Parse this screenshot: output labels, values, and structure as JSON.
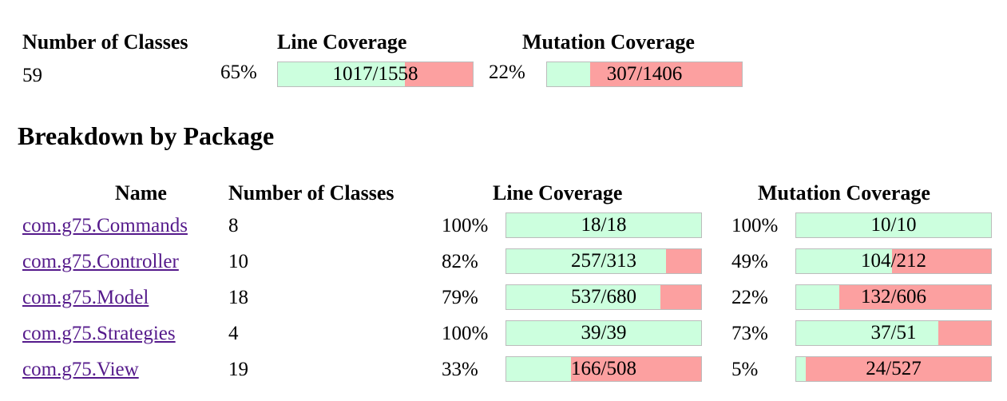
{
  "summary": {
    "headers": {
      "classes": "Number of Classes",
      "line": "Line Coverage",
      "mutation": "Mutation Coverage"
    },
    "classes": "59",
    "line": {
      "percent": "65%",
      "label": "1017/1558",
      "fraction": 0.65
    },
    "mutation": {
      "percent": "22%",
      "label": "307/1406",
      "fraction": 0.22
    }
  },
  "breakdown": {
    "title": "Breakdown by Package",
    "headers": {
      "name": "Name",
      "classes": "Number of Classes",
      "line": "Line Coverage",
      "mutation": "Mutation Coverage"
    },
    "rows": [
      {
        "name": "com.g75.Commands",
        "classes": "8",
        "line": {
          "percent": "100%",
          "label": "18/18",
          "fraction": 1.0
        },
        "mutation": {
          "percent": "100%",
          "label": "10/10",
          "fraction": 1.0
        }
      },
      {
        "name": "com.g75.Controller",
        "classes": "10",
        "line": {
          "percent": "82%",
          "label": "257/313",
          "fraction": 0.82
        },
        "mutation": {
          "percent": "49%",
          "label": "104/212",
          "fraction": 0.49
        }
      },
      {
        "name": "com.g75.Model",
        "classes": "18",
        "line": {
          "percent": "79%",
          "label": "537/680",
          "fraction": 0.79
        },
        "mutation": {
          "percent": "22%",
          "label": "132/606",
          "fraction": 0.22
        }
      },
      {
        "name": "com.g75.Strategies",
        "classes": "4",
        "line": {
          "percent": "100%",
          "label": "39/39",
          "fraction": 1.0
        },
        "mutation": {
          "percent": "73%",
          "label": "37/51",
          "fraction": 0.73
        }
      },
      {
        "name": "com.g75.View",
        "classes": "19",
        "line": {
          "percent": "33%",
          "label": "166/508",
          "fraction": 0.33
        },
        "mutation": {
          "percent": "5%",
          "label": "24/527",
          "fraction": 0.05
        }
      }
    ]
  },
  "colors": {
    "covered": "#ccffde",
    "uncovered": "#fca0a0",
    "link": "#551a8b"
  }
}
